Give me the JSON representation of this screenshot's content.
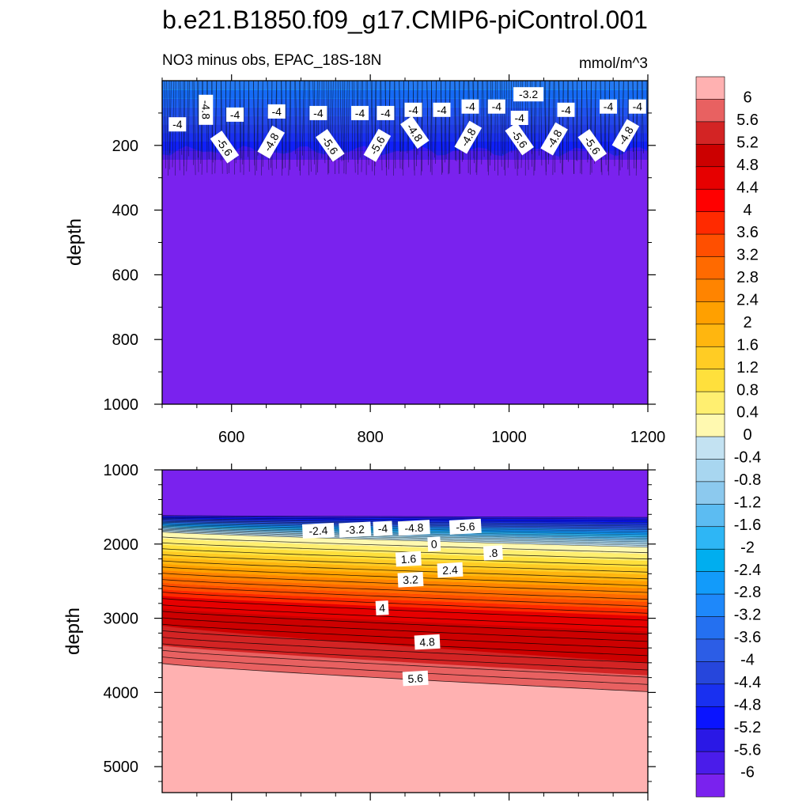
{
  "title": "b.e21.B1850.f09_g17.CMIP6-piControl.001",
  "chart_data": [
    {
      "type": "contour",
      "panel": "upper",
      "title": "NO3 minus obs, EPAC_18S-18N",
      "units": "mmol/m^3",
      "xlabel": "",
      "ylabel": "depth",
      "xlim": [
        500,
        1200
      ],
      "ylim": [
        1000,
        0
      ],
      "xticks": [
        600,
        800,
        1000,
        1200
      ],
      "yticks": [
        200,
        400,
        600,
        800,
        1000
      ],
      "transition_depth": [
        200,
        235
      ],
      "contour_labels": [
        {
          "text": "-4",
          "x": 522,
          "y": 135
        },
        {
          "text": "-4.8",
          "x": 563,
          "y": 90
        },
        {
          "text": "-4",
          "x": 605,
          "y": 105
        },
        {
          "text": "-4",
          "x": 665,
          "y": 95
        },
        {
          "text": "-4",
          "x": 725,
          "y": 100
        },
        {
          "text": "-4",
          "x": 785,
          "y": 100
        },
        {
          "text": "-4",
          "x": 822,
          "y": 100
        },
        {
          "text": "-4",
          "x": 862,
          "y": 90
        },
        {
          "text": "-4",
          "x": 903,
          "y": 90
        },
        {
          "text": "-4",
          "x": 944,
          "y": 80
        },
        {
          "text": "-4",
          "x": 982,
          "y": 80
        },
        {
          "text": "-3.2",
          "x": 1028,
          "y": 42
        },
        {
          "text": "-4",
          "x": 1015,
          "y": 115
        },
        {
          "text": "-4",
          "x": 1082,
          "y": 90
        },
        {
          "text": "-4",
          "x": 1143,
          "y": 80
        },
        {
          "text": "-4",
          "x": 1185,
          "y": 80
        },
        {
          "text": "-5.6",
          "x": 590,
          "y": 205
        },
        {
          "text": "-4.8",
          "x": 657,
          "y": 190
        },
        {
          "text": "-5.6",
          "x": 742,
          "y": 200
        },
        {
          "text": "-5.6",
          "x": 810,
          "y": 200
        },
        {
          "text": "-4.8",
          "x": 864,
          "y": 160
        },
        {
          "text": "-4.8",
          "x": 941,
          "y": 175
        },
        {
          "text": "-5.6",
          "x": 1015,
          "y": 180
        },
        {
          "text": "-4.8",
          "x": 1065,
          "y": 180
        },
        {
          "text": "-5.6",
          "x": 1120,
          "y": 200
        },
        {
          "text": "-4.8",
          "x": 1168,
          "y": 170
        }
      ]
    },
    {
      "type": "contour",
      "panel": "lower",
      "title": "",
      "xlabel": "",
      "ylabel": "depth",
      "xlim": [
        500,
        1200
      ],
      "ylim": [
        5350,
        1000
      ],
      "yticks": [
        1000,
        2000,
        3000,
        4000,
        5000
      ],
      "contour_levels": [
        {
          "level": -5.6,
          "depth_left": 1615,
          "depth_right": 1640
        },
        {
          "level": -2.4,
          "depth_left": 1760,
          "depth_right": 1930
        },
        {
          "level": 0,
          "depth_left": 1840,
          "depth_right": 2045
        },
        {
          "level": 1.6,
          "depth_left": 2140,
          "depth_right": 2330
        },
        {
          "level": 2.4,
          "depth_left": 2290,
          "depth_right": 2500
        },
        {
          "level": 3.2,
          "depth_left": 2470,
          "depth_right": 2720
        },
        {
          "level": 4,
          "depth_left": 2700,
          "depth_right": 2970
        },
        {
          "level": 4.4,
          "depth_left": 2870,
          "depth_right": 3180
        },
        {
          "level": 4.8,
          "depth_left": 3100,
          "depth_right": 3600
        },
        {
          "level": 5.2,
          "depth_left": 3370,
          "depth_right": 3770
        },
        {
          "level": 5.6,
          "depth_left": 3610,
          "depth_right": 3990
        }
      ],
      "contour_labels": [
        {
          "text": "-2.4",
          "x": 725,
          "y": 1820
        },
        {
          "text": "-3.2",
          "x": 778,
          "y": 1805
        },
        {
          "text": "-4",
          "x": 818,
          "y": 1790
        },
        {
          "text": "-4.8",
          "x": 863,
          "y": 1780
        },
        {
          "text": "-5.6",
          "x": 937,
          "y": 1765
        },
        {
          "text": "0",
          "x": 892,
          "y": 2000
        },
        {
          ".": "",
          "text": ".8",
          "x": 977,
          "y": 2120
        },
        {
          "text": "1.6",
          "x": 855,
          "y": 2200
        },
        {
          "text": "2.4",
          "x": 915,
          "y": 2350
        },
        {
          "text": "3.2",
          "x": 858,
          "y": 2480
        },
        {
          "text": "4",
          "x": 817,
          "y": 2860
        },
        {
          "text": "4.8",
          "x": 882,
          "y": 3320
        },
        {
          "text": "5.6",
          "x": 865,
          "y": 3810
        }
      ]
    }
  ],
  "colorbar": {
    "labels": [
      "6",
      "5.6",
      "5.2",
      "4.8",
      "4.4",
      "4",
      "3.6",
      "3.2",
      "2.8",
      "2.4",
      "2",
      "1.6",
      "1.2",
      "0.8",
      "0.4",
      "0",
      "-0.4",
      "-0.8",
      "-1.2",
      "-1.6",
      "-2",
      "-2.4",
      "-2.8",
      "-3.2",
      "-3.6",
      "-4",
      "-4.4",
      "-4.8",
      "-5.2",
      "-5.6",
      "-6"
    ],
    "colors": [
      "#FFB1B1",
      "#E86161",
      "#D32424",
      "#CC0000",
      "#E60000",
      "#FF0000",
      "#FF2A00",
      "#FF4F00",
      "#FF6A00",
      "#FF8400",
      "#FFA000",
      "#FFB60F",
      "#FFCC24",
      "#FFE03C",
      "#FFEF70",
      "#FFF9B0",
      "#C3E2F2",
      "#A8D6F0",
      "#8CC9EE",
      "#5CBCF2",
      "#2EB6F5",
      "#00AEEF",
      "#129BFA",
      "#1E88FA",
      "#2470F0",
      "#2C5DE6",
      "#2646DC",
      "#1930F0",
      "#0A14FF",
      "#2A18E6",
      "#4A1CEA",
      "#7A22EE"
    ]
  }
}
